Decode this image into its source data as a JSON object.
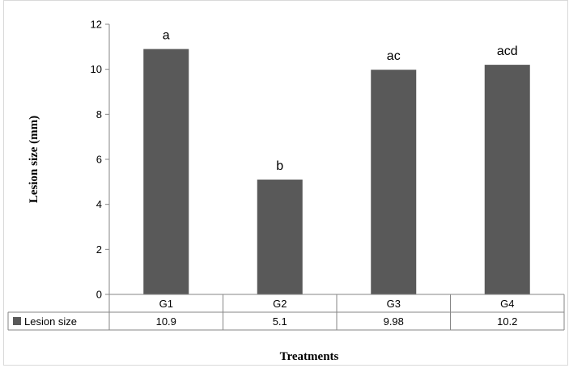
{
  "chart_data": {
    "type": "bar",
    "categories": [
      "G1",
      "G2",
      "G3",
      "G4"
    ],
    "series": [
      {
        "name": "Lesion size",
        "values": [
          10.9,
          5.1,
          9.98,
          10.2
        ],
        "color": "#595959"
      }
    ],
    "data_labels": [
      "a",
      "b",
      "ac",
      "acd"
    ],
    "table_values": [
      "10.9",
      "5.1",
      "9.98",
      "10.2"
    ],
    "ylabel": "Lesion size (mm)",
    "xlabel": "Treatments",
    "ylim": [
      0,
      12
    ],
    "yticks": [
      0,
      2,
      4,
      6,
      8,
      10,
      12
    ],
    "grid": false,
    "legend": "data-table"
  }
}
